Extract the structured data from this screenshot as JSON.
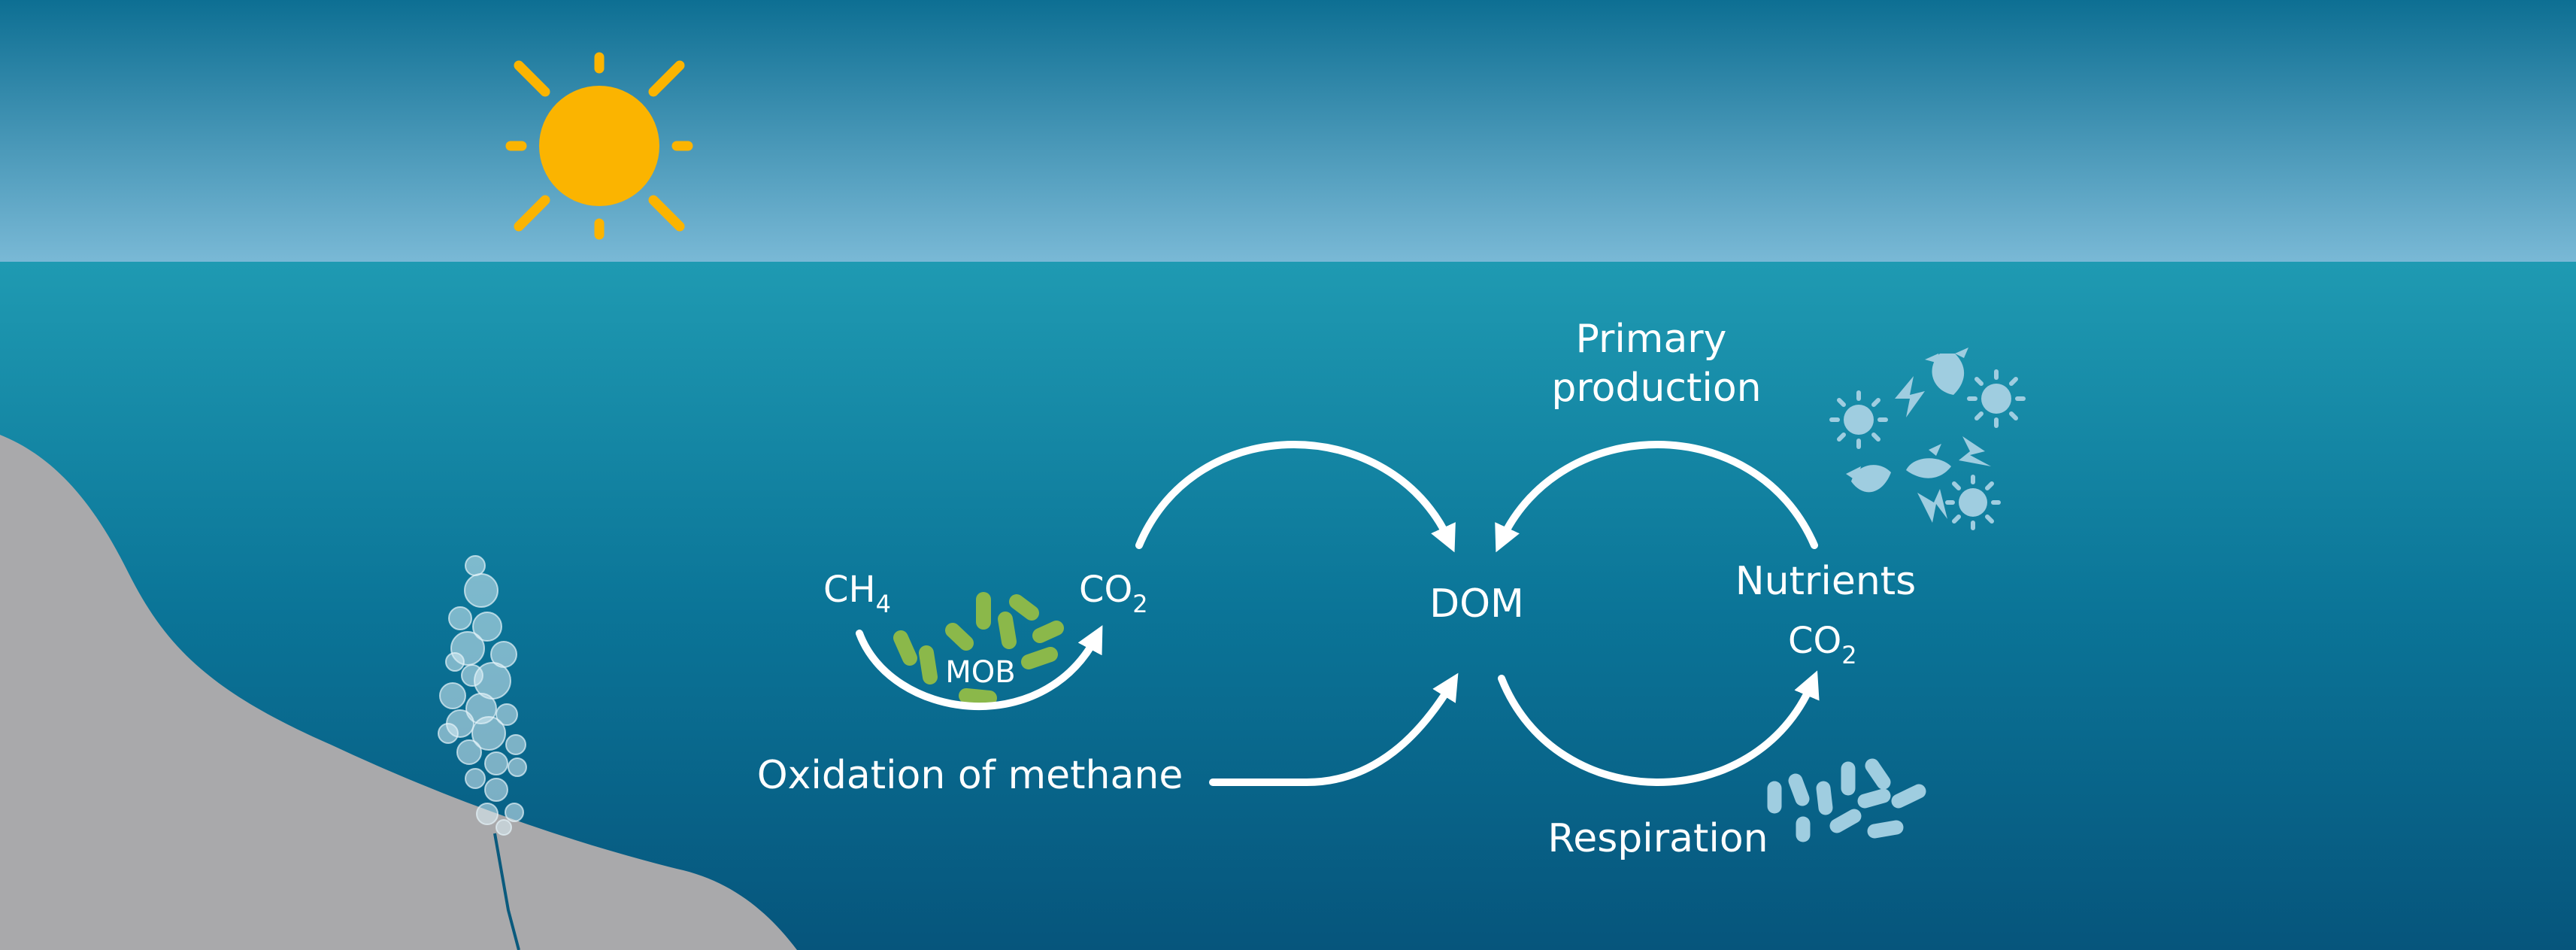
{
  "colors": {
    "sky_top": "#0d6f93",
    "sky_bottom": "#7ab9d6",
    "water_top": "#1f9ab2",
    "water_bottom": "#06557c",
    "sun": "#fbb400",
    "seabed": "#a9a9ab",
    "mob_bacteria": "#8bb84a",
    "organisms": "#9fcde0",
    "arrow": "#ffffff"
  },
  "labels": {
    "ch4_main": "CH",
    "ch4_sub": "4",
    "co2_left_main": "CO",
    "co2_left_sub": "2",
    "mob": "MOB",
    "oxidation": "Oxidation of methane",
    "dom": "DOM",
    "primary_line1": "Primary",
    "primary_line2": "production",
    "nutrients": "Nutrients",
    "co2_right_main": "CO",
    "co2_right_sub": "2",
    "respiration": "Respiration"
  },
  "icons": {
    "sun": "sun-icon",
    "bubbles": "methane-bubbles-icon",
    "phytoplankton": "phytoplankton-icon",
    "bacteria": "bacteria-icon"
  }
}
